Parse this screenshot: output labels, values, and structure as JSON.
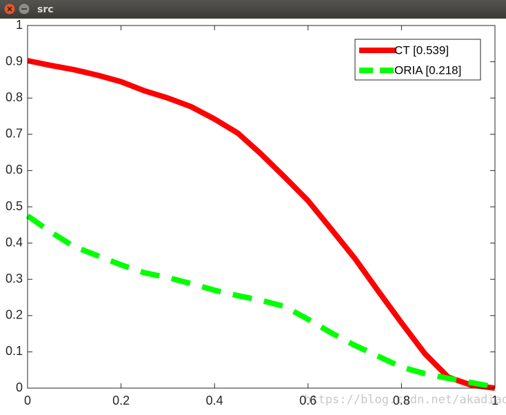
{
  "window": {
    "title": "src"
  },
  "chart_data": {
    "type": "line",
    "x": [
      0,
      0.05,
      0.1,
      0.15,
      0.2,
      0.25,
      0.3,
      0.35,
      0.4,
      0.45,
      0.5,
      0.55,
      0.6,
      0.65,
      0.7,
      0.75,
      0.8,
      0.85,
      0.9,
      0.95,
      1
    ],
    "series": [
      {
        "name": "CT [0.539]",
        "color": "#ff0000",
        "style": "solid",
        "values": [
          0.903,
          0.89,
          0.878,
          0.863,
          0.845,
          0.82,
          0.8,
          0.776,
          0.742,
          0.703,
          0.645,
          0.582,
          0.517,
          0.438,
          0.358,
          0.268,
          0.18,
          0.095,
          0.03,
          0.008,
          0
        ]
      },
      {
        "name": "ORIA [0.218]",
        "color": "#00ff00",
        "style": "dashed",
        "values": [
          0.475,
          0.43,
          0.39,
          0.365,
          0.34,
          0.318,
          0.305,
          0.288,
          0.27,
          0.255,
          0.242,
          0.225,
          0.19,
          0.152,
          0.118,
          0.088,
          0.058,
          0.04,
          0.027,
          0.015,
          0.003
        ]
      }
    ],
    "xlim": [
      0,
      1
    ],
    "ylim": [
      0,
      1
    ],
    "xticks": [
      0,
      0.2,
      0.4,
      0.6,
      0.8,
      1
    ],
    "yticks": [
      0,
      0.1,
      0.2,
      0.3,
      0.4,
      0.5,
      0.6,
      0.7,
      0.8,
      0.9,
      1
    ],
    "grid": false,
    "legend": "top-right",
    "watermark": "https://blog.csdn.net/akadiao"
  }
}
